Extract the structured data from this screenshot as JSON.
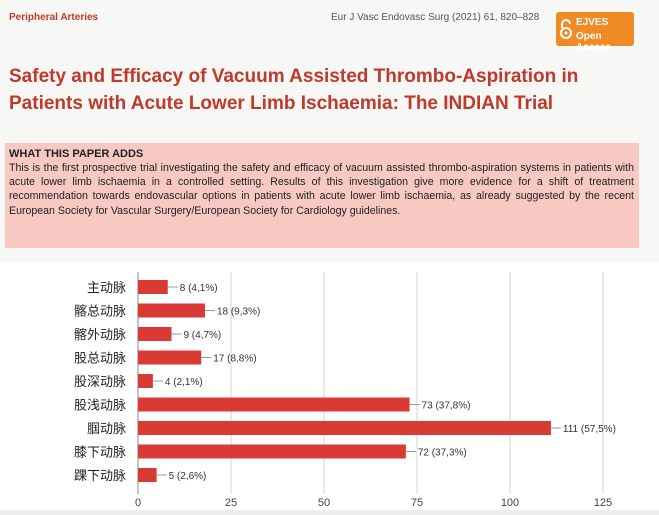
{
  "header": {
    "section": "Peripheral Arteries",
    "citation": "Eur J Vasc Endovasc Surg (2021) 61, 820–828",
    "badge_line1": "EJVES",
    "badge_line2": "Open Access"
  },
  "title": "Safety and Efficacy of Vacuum Assisted Thrombo-Aspiration in Patients with Acute Lower Limb Ischaemia: The INDIAN Trial",
  "adds": {
    "heading": "WHAT THIS PAPER ADDS",
    "body": "This is the first prospective trial investigating the safety and efficacy of vacuum assisted thrombo-aspiration systems in patients with acute lower limb ischaemia in a controlled setting. Results of this investigation give more evidence for a shift of treatment recommendation towards endovascular options in patients with acute lower limb ischaemia, as already suggested by the recent European Society for Vascular Surgery/European Society for Cardiology guidelines."
  },
  "chart_data": {
    "type": "bar",
    "orientation": "horizontal",
    "categories": [
      "主动脉",
      "髂总动脉",
      "髂外动脉",
      "股总动脉",
      "股深动脉",
      "股浅动脉",
      "腘动脉",
      "膝下动脉",
      "踝下动脉"
    ],
    "values": [
      8,
      18,
      9,
      17,
      4,
      73,
      111,
      72,
      5
    ],
    "data_labels": [
      "8 (4,1%)",
      "18 (9,3%)",
      "9 (4,7%)",
      "17 (8,8%)",
      "4 (2,1%)",
      "73 (37,8%)",
      "111 (57,5%)",
      "72 (37,3%)",
      "5 (2,6%)"
    ],
    "xlim": [
      0,
      125
    ],
    "xticks": [
      0,
      25,
      50,
      75,
      100,
      125
    ],
    "grid": true,
    "bar_color": "#d93a34"
  }
}
